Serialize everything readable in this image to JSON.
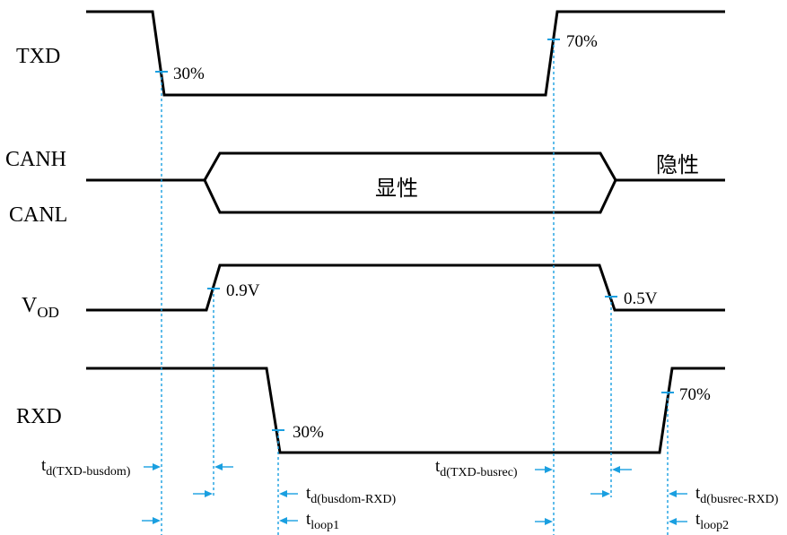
{
  "colors": {
    "signal": "#000000",
    "guide": "#1a9fe0",
    "background": "#ffffff"
  },
  "signals": {
    "txd": "TXD",
    "canh": "CANH",
    "canl": "CANL",
    "vod_main": "V",
    "vod_sub": "OD",
    "rxd": "RXD"
  },
  "bus_states": {
    "dominant": "显性",
    "recessive": "隐性"
  },
  "thresholds": {
    "txd_fall": "30%",
    "txd_rise": "70%",
    "vod_rise": "0.9V",
    "vod_fall": "0.5V",
    "rxd_fall": "30%",
    "rxd_rise": "70%"
  },
  "timing": {
    "td_txd_busdom": {
      "main": "t",
      "sub": "d(TXD-busdom)"
    },
    "td_busdom_rxd": {
      "main": "t",
      "sub": "d(busdom-RXD)"
    },
    "tloop1": {
      "main": "t",
      "sub": "loop1"
    },
    "td_txd_busrec": {
      "main": "t",
      "sub": "d(TXD-busrec)"
    },
    "td_busrec_rxd": {
      "main": "t",
      "sub": "d(busrec-RXD)"
    },
    "tloop2": {
      "main": "t",
      "sub": "loop2"
    }
  }
}
